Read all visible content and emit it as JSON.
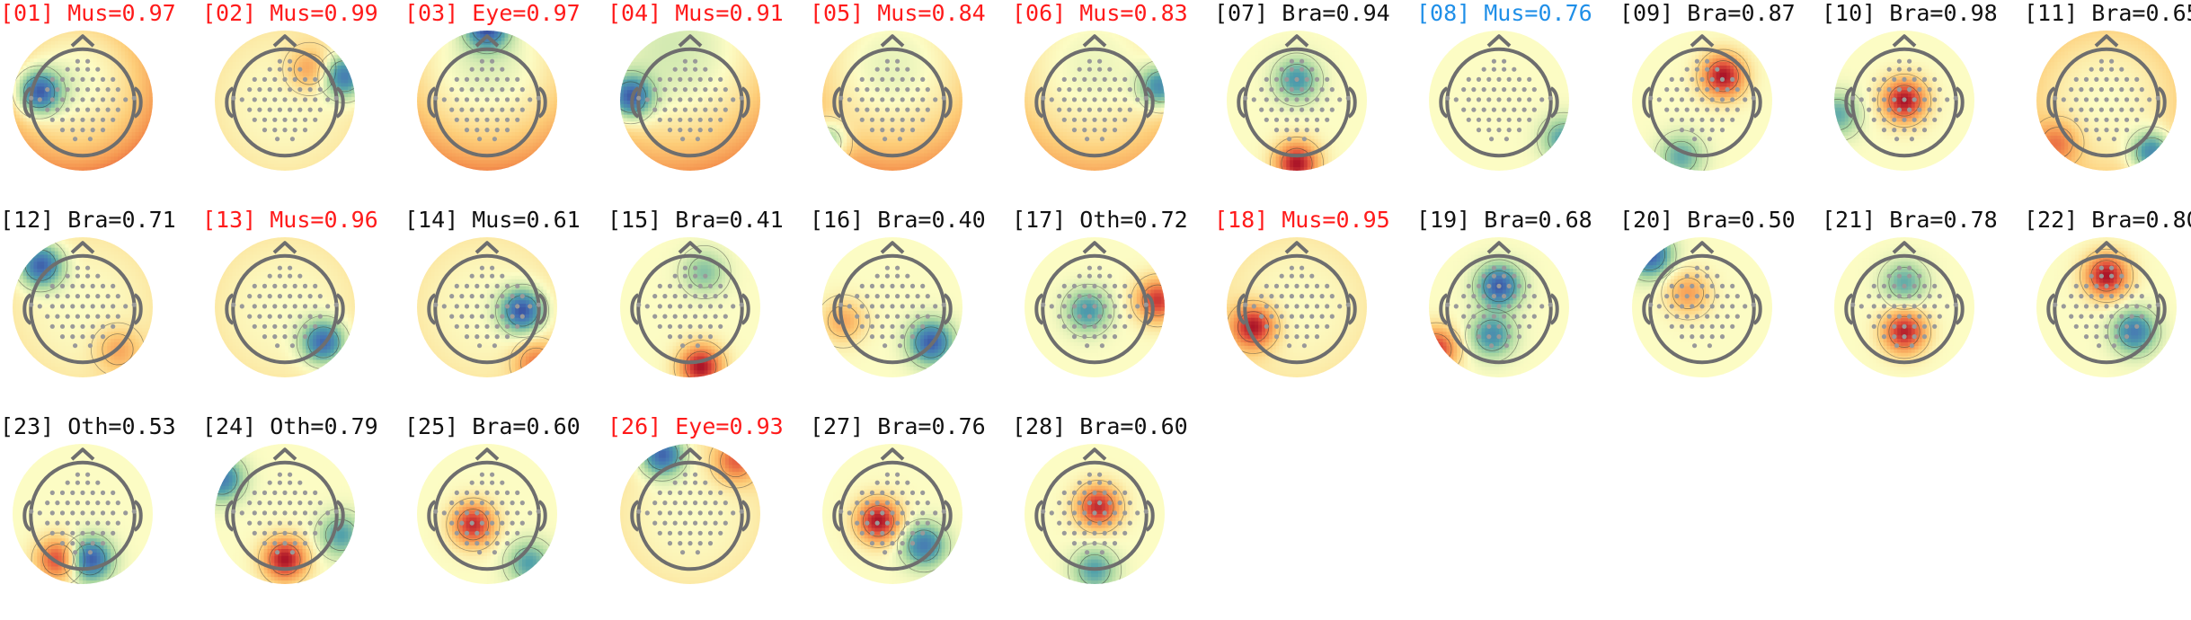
{
  "colors": {
    "artifact_label": "#ff1a1a",
    "highlight_label": "#1f8fe8",
    "normal_label": "#111111",
    "head_outline": "#6e6e6e",
    "sensor_dot": "#999999",
    "contour_line": "#333333"
  },
  "components": [
    {
      "label": "[01] Mus=0.97",
      "status": "artifact",
      "hot": [],
      "cold": [
        [
          -0.62,
          -0.12,
          0.9
        ]
      ],
      "tilt": [
        0.35,
        0.1,
        0.2
      ]
    },
    {
      "label": "[02] Mus=0.99",
      "status": "artifact",
      "hot": [
        [
          0.35,
          -0.45,
          0.4
        ]
      ],
      "cold": [
        [
          0.85,
          -0.35,
          0.8
        ]
      ],
      "tilt": [
        0.1,
        0,
        0
      ]
    },
    {
      "label": "[03] Eye=0.97",
      "status": "artifact",
      "hot": [],
      "cold": [
        [
          0,
          -1.05,
          0.9
        ]
      ],
      "tilt": [
        0.25,
        0,
        0.3
      ]
    },
    {
      "label": "[04] Mus=0.91",
      "status": "artifact",
      "hot": [],
      "cold": [
        [
          -0.85,
          -0.05,
          0.9
        ]
      ],
      "tilt": [
        0.2,
        0.1,
        0.3
      ]
    },
    {
      "label": "[05] Mus=0.84",
      "status": "artifact",
      "hot": [],
      "cold": [
        [
          -0.95,
          0.6,
          0.7
        ]
      ],
      "tilt": [
        0.25,
        0,
        0.25
      ]
    },
    {
      "label": "[06] Mus=0.83",
      "status": "artifact",
      "hot": [],
      "cold": [
        [
          0.95,
          -0.2,
          0.75
        ]
      ],
      "tilt": [
        0.2,
        0,
        0.2
      ]
    },
    {
      "label": "[07] Bra=0.94",
      "status": "normal",
      "hot": [
        [
          0,
          0.9,
          1.0
        ]
      ],
      "cold": [
        [
          0,
          -0.3,
          0.55
        ]
      ],
      "tilt": [
        0,
        0,
        0
      ]
    },
    {
      "label": "[08] Mus=0.76",
      "status": "highlight",
      "hot": [],
      "cold": [
        [
          0.92,
          0.55,
          0.5
        ]
      ],
      "tilt": [
        0,
        0,
        0
      ]
    },
    {
      "label": "[09] Bra=0.87",
      "status": "normal",
      "hot": [
        [
          0.3,
          -0.35,
          1.0
        ]
      ],
      "cold": [
        [
          -0.3,
          0.8,
          0.45
        ]
      ],
      "tilt": [
        0,
        0,
        0
      ]
    },
    {
      "label": "[10] Bra=0.98",
      "status": "normal",
      "hot": [
        [
          0,
          0,
          1.0
        ]
      ],
      "cold": [
        [
          -0.95,
          0.2,
          0.45
        ]
      ],
      "tilt": [
        0,
        0,
        0
      ]
    },
    {
      "label": "[11] Bra=0.65",
      "status": "normal",
      "hot": [
        [
          -0.7,
          0.6,
          0.45
        ]
      ],
      "cold": [
        [
          0.65,
          0.75,
          0.8
        ]
      ],
      "tilt": [
        0.2,
        0,
        0
      ]
    },
    {
      "label": "[12] Bra=0.71",
      "status": "normal",
      "hot": [
        [
          0.5,
          0.6,
          0.35
        ]
      ],
      "cold": [
        [
          -0.6,
          -0.6,
          0.9
        ]
      ],
      "tilt": [
        0.1,
        0,
        0
      ]
    },
    {
      "label": "[13] Mus=0.96",
      "status": "artifact",
      "hot": [],
      "cold": [
        [
          0.55,
          0.5,
          0.85
        ]
      ],
      "tilt": [
        0.1,
        0,
        0
      ]
    },
    {
      "label": "[14] Mus=0.61",
      "status": "normal",
      "hot": [
        [
          0.7,
          0.8,
          0.5
        ]
      ],
      "cold": [
        [
          0.5,
          0.05,
          0.9
        ]
      ],
      "tilt": [
        0.1,
        0,
        0
      ]
    },
    {
      "label": "[15] Bra=0.41",
      "status": "normal",
      "hot": [
        [
          0.15,
          0.85,
          1.0
        ]
      ],
      "cold": [
        [
          0.2,
          -0.5,
          0.35
        ]
      ],
      "tilt": [
        0,
        0,
        0
      ]
    },
    {
      "label": "[16] Bra=0.40",
      "status": "normal",
      "hot": [
        [
          -0.7,
          0.2,
          0.4
        ]
      ],
      "cold": [
        [
          0.55,
          0.5,
          0.85
        ]
      ],
      "tilt": [
        0,
        0,
        0
      ]
    },
    {
      "label": "[17] Oth=0.72",
      "status": "normal",
      "hot": [
        [
          0.9,
          -0.1,
          0.85
        ]
      ],
      "cold": [
        [
          -0.1,
          0.05,
          0.55
        ]
      ],
      "tilt": [
        0,
        0,
        0
      ]
    },
    {
      "label": "[18] Mus=0.95",
      "status": "artifact",
      "hot": [
        [
          -0.62,
          0.28,
          0.95
        ]
      ],
      "cold": [],
      "tilt": [
        0.1,
        0,
        0
      ]
    },
    {
      "label": "[19] Bra=0.68",
      "status": "normal",
      "hot": [
        [
          -0.9,
          0.6,
          0.85
        ]
      ],
      "cold": [
        [
          0,
          -0.3,
          0.85
        ],
        [
          -0.1,
          0.4,
          0.6
        ]
      ],
      "tilt": [
        0,
        0,
        0
      ]
    },
    {
      "label": "[20] Bra=0.50",
      "status": "normal",
      "hot": [
        [
          -0.2,
          -0.2,
          0.45
        ]
      ],
      "cold": [
        [
          -0.75,
          -0.75,
          0.85
        ]
      ],
      "tilt": [
        0,
        0,
        0
      ]
    },
    {
      "label": "[21] Bra=0.78",
      "status": "normal",
      "hot": [
        [
          0,
          0.35,
          0.95
        ]
      ],
      "cold": [
        [
          0,
          -0.35,
          0.45
        ]
      ],
      "tilt": [
        0,
        0,
        0
      ]
    },
    {
      "label": "[22] Bra=0.80",
      "status": "normal",
      "hot": [
        [
          0,
          -0.45,
          1.0
        ]
      ],
      "cold": [
        [
          0.4,
          0.35,
          0.7
        ]
      ],
      "tilt": [
        0,
        0,
        0
      ]
    },
    {
      "label": "[23] Oth=0.53",
      "status": "normal",
      "hot": [
        [
          -0.35,
          0.65,
          0.8
        ]
      ],
      "cold": [
        [
          0.1,
          0.65,
          0.9
        ]
      ],
      "tilt": [
        0,
        0,
        0
      ]
    },
    {
      "label": "[24] Oth=0.79",
      "status": "normal",
      "hot": [
        [
          0,
          0.65,
          1.0
        ]
      ],
      "cold": [
        [
          -0.9,
          -0.5,
          0.7
        ],
        [
          0.8,
          0.3,
          0.5
        ]
      ],
      "tilt": [
        0,
        0,
        0
      ]
    },
    {
      "label": "[25] Bra=0.60",
      "status": "normal",
      "hot": [
        [
          -0.2,
          0.15,
          0.9
        ]
      ],
      "cold": [
        [
          0.6,
          0.7,
          0.5
        ]
      ],
      "tilt": [
        0,
        0,
        0
      ]
    },
    {
      "label": "[26] Eye=0.93",
      "status": "artifact",
      "hot": [
        [
          0.65,
          -0.75,
          0.6
        ]
      ],
      "cold": [
        [
          -0.4,
          -0.85,
          0.9
        ]
      ],
      "tilt": [
        0.1,
        0,
        0
      ]
    },
    {
      "label": "[27] Bra=0.76",
      "status": "normal",
      "hot": [
        [
          -0.2,
          0.1,
          1.0
        ]
      ],
      "cold": [
        [
          0.45,
          0.45,
          0.7
        ]
      ],
      "tilt": [
        0,
        0,
        0
      ]
    },
    {
      "label": "[28] Bra=0.60",
      "status": "normal",
      "hot": [
        [
          0.05,
          -0.1,
          0.9
        ]
      ],
      "cold": [
        [
          0,
          0.8,
          0.5
        ]
      ],
      "tilt": [
        0,
        0,
        0
      ]
    }
  ]
}
